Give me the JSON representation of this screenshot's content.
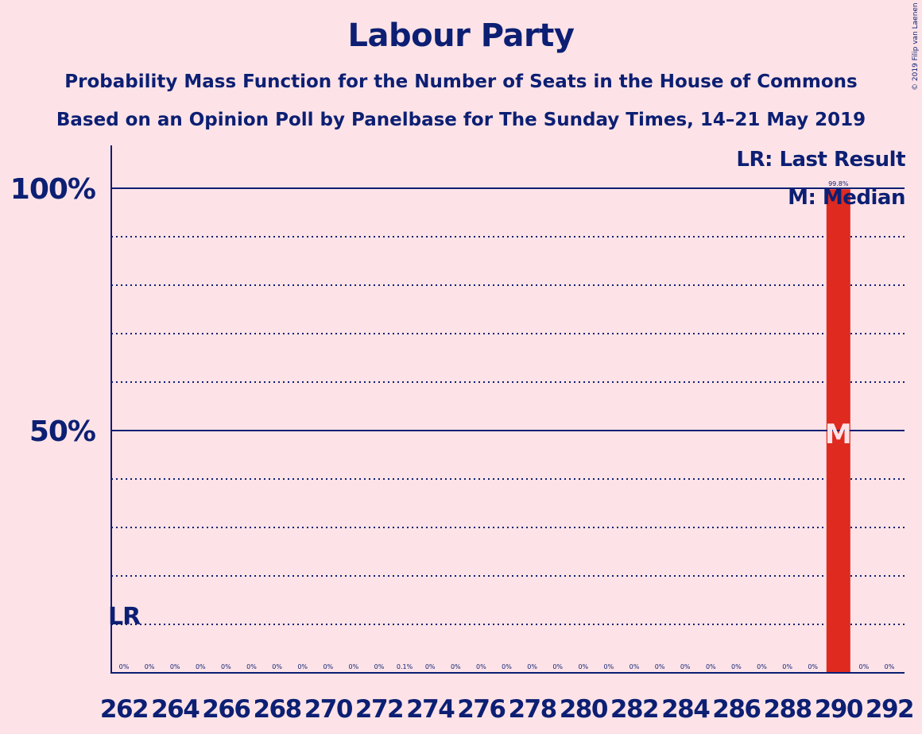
{
  "chart_data": {
    "type": "bar",
    "title": "Labour Party",
    "subtitle_1": "Probability Mass Function for the Number of Seats in the House of Commons",
    "subtitle_2": "Based on an Opinion Poll by Panelbase for The Sunday Times, 14–21 May 2019",
    "copyright": "© 2019 Filip van Laenen",
    "categories": [
      262,
      263,
      264,
      265,
      266,
      267,
      268,
      269,
      270,
      271,
      272,
      273,
      274,
      275,
      276,
      277,
      278,
      279,
      280,
      281,
      282,
      283,
      284,
      285,
      286,
      287,
      288,
      289,
      290,
      291,
      292
    ],
    "x_tick_labels": [
      "262",
      "264",
      "266",
      "268",
      "270",
      "272",
      "274",
      "276",
      "278",
      "280",
      "282",
      "284",
      "286",
      "288",
      "290",
      "292"
    ],
    "values": [
      0,
      0,
      0,
      0,
      0,
      0,
      0,
      0,
      0,
      0,
      0,
      0.1,
      0,
      0,
      0,
      0,
      0,
      0,
      0,
      0,
      0,
      0,
      0,
      0,
      0,
      0,
      0,
      0,
      99.8,
      0,
      0
    ],
    "value_labels": [
      "0%",
      "0%",
      "0%",
      "0%",
      "0%",
      "0%",
      "0%",
      "0%",
      "0%",
      "0%",
      "0%",
      "0.1%",
      "0%",
      "0%",
      "0%",
      "0%",
      "0%",
      "0%",
      "0%",
      "0%",
      "0%",
      "0%",
      "0%",
      "0%",
      "0%",
      "0%",
      "0%",
      "0%",
      "99.8%",
      "0%",
      "0%"
    ],
    "y_tick_labels": [
      {
        "value": 100,
        "label": "100%"
      },
      {
        "value": 50,
        "label": "50%"
      }
    ],
    "ylim": [
      0,
      100
    ],
    "gridlines_dotted": [
      10,
      20,
      30,
      40,
      60,
      70,
      80,
      90
    ],
    "gridlines_solid": [
      50,
      100
    ],
    "last_result": {
      "seat": 262,
      "label": "LR"
    },
    "median": {
      "seat": 290,
      "label": "M"
    },
    "legend": [
      "LR: Last Result",
      "M: Median"
    ],
    "colors": {
      "background": "#fde3e7",
      "text": "#0c1f73",
      "bar": "#de2a1f",
      "median_label": "#fde3e7"
    }
  }
}
